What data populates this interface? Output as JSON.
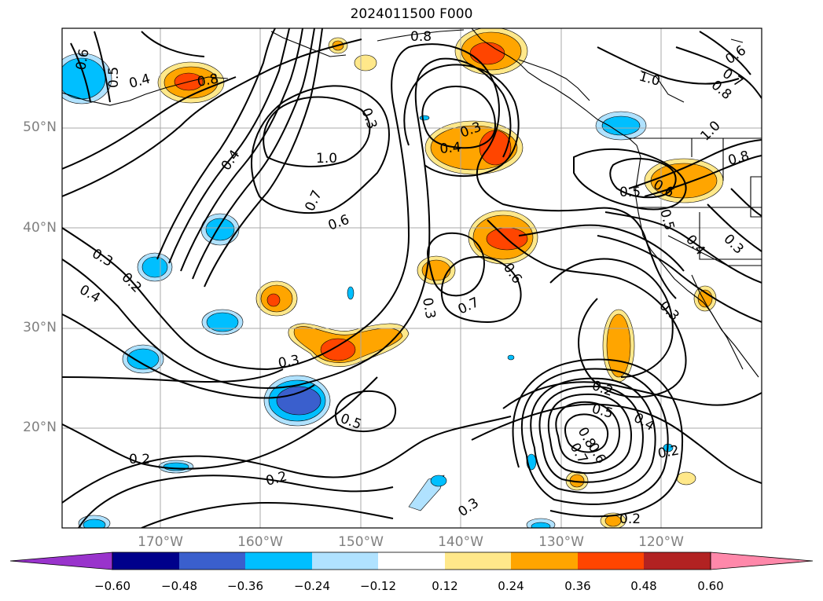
{
  "title": "2024011500 F000",
  "lat_labels": [
    "50°N",
    "40°N",
    "30°N",
    "20°N"
  ],
  "lon_labels": [
    "170°W",
    "160°W",
    "150°W",
    "140°W",
    "130°W",
    "120°W"
  ],
  "contour_labels": [
    "0.8",
    "0.4",
    "0.5",
    "0.6",
    "0.8",
    "0.3",
    "0.4",
    "1.0",
    "0.4",
    "0.7",
    "0.6",
    "0.3",
    "0.2",
    "0.4",
    "0.3",
    "0.3",
    "0.7",
    "0.6",
    "0.3",
    "0.5",
    "0.2",
    "0.5",
    "0.4",
    "0.2",
    "0.8",
    "0.7",
    "0.6",
    "0.2",
    "0.2",
    "0.3",
    "0.2",
    "1.0",
    "0.6",
    "0.7",
    "0.8",
    "1.0",
    "0.8",
    "0.5",
    "0.6",
    "0.5",
    "0.4",
    "0.3",
    "0.3",
    "0.8",
    "0.5",
    "0.6",
    "0.8",
    "0.7",
    "0.6"
  ],
  "colorbar": {
    "ticks": [
      "−0.60",
      "−0.48",
      "−0.36",
      "−0.24",
      "−0.12",
      "0.12",
      "0.24",
      "0.36",
      "0.48",
      "0.60"
    ],
    "colors": [
      "#9933cc",
      "#00008b",
      "#3a5fcd",
      "#00bfff",
      "#b0e2ff",
      "#ffffff",
      "#ffe88a",
      "#ffa500",
      "#ff4500",
      "#b22222",
      "#ff88aa"
    ]
  },
  "shading_colors": {
    "pos_light": "#ffe88a",
    "pos_mid": "#ffa500",
    "pos_strong": "#ff4500",
    "neg_light": "#b0e2ff",
    "neg_mid": "#00bfff",
    "neg_strong": "#3a5fcd"
  }
}
